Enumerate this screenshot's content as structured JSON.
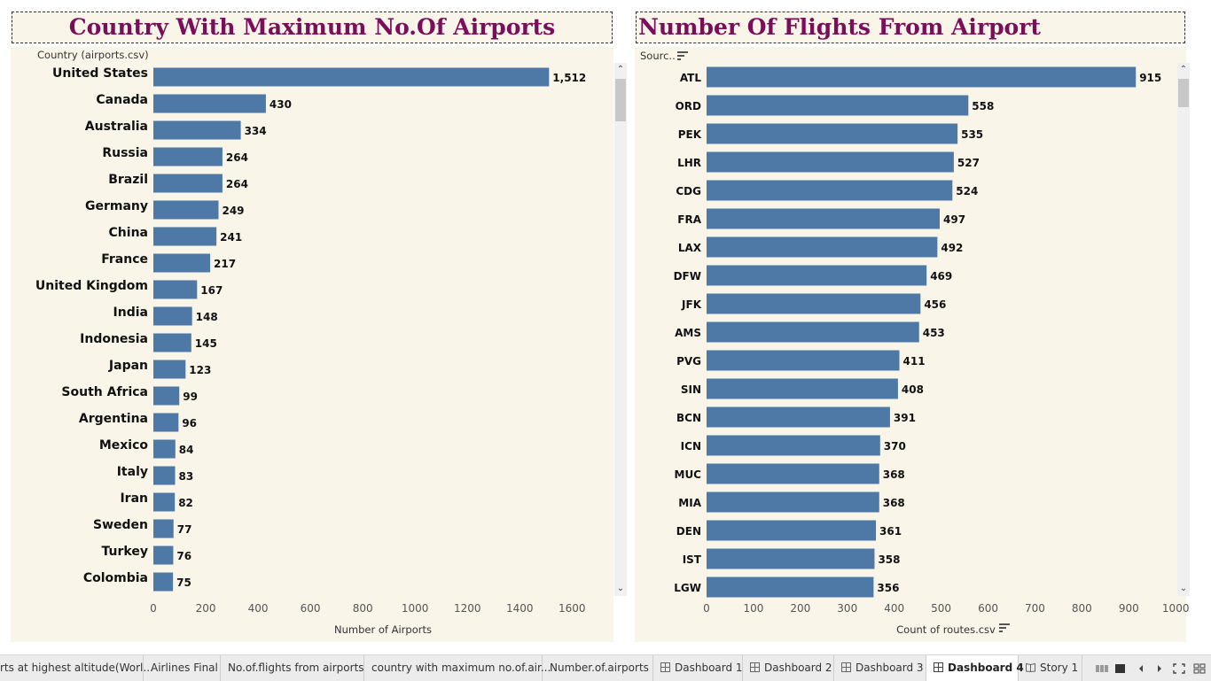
{
  "dashboard": {
    "left_title": "Country With Maximum No.Of Airports",
    "right_title": "Number Of Flights From Airport"
  },
  "colors": {
    "bar": "#4e79a7",
    "title": "#7b0e5a",
    "panel_bg": "#faf5e9"
  },
  "left_chart": {
    "row_header": "Country (airports.csv)"
  },
  "right_chart": {
    "row_header": "Sourc..",
    "sort_icon": "sort-descending-icon",
    "xlabel_sort_icon": "sort-descending-icon"
  },
  "chart_data": [
    {
      "type": "bar",
      "orientation": "horizontal",
      "title": "Country With Maximum No.Of Airports",
      "ylabel": "Country (airports.csv)",
      "xlabel": "Number of Airports",
      "categories": [
        "United States",
        "Canada",
        "Australia",
        "Russia",
        "Brazil",
        "Germany",
        "China",
        "France",
        "United Kingdom",
        "India",
        "Indonesia",
        "Japan",
        "South Africa",
        "Argentina",
        "Mexico",
        "Italy",
        "Iran",
        "Sweden",
        "Turkey",
        "Colombia"
      ],
      "values": [
        1512,
        430,
        334,
        264,
        264,
        249,
        241,
        217,
        167,
        148,
        145,
        123,
        99,
        96,
        84,
        83,
        82,
        77,
        76,
        75
      ],
      "value_labels": [
        "1,512",
        "430",
        "334",
        "264",
        "264",
        "249",
        "241",
        "217",
        "167",
        "148",
        "145",
        "123",
        "99",
        "96",
        "84",
        "83",
        "82",
        "77",
        "76",
        "75"
      ],
      "xticks": [
        "0",
        "200",
        "400",
        "600",
        "800",
        "1000",
        "1200",
        "1400",
        "1600"
      ],
      "xlim": [
        0,
        1700
      ],
      "grid": false
    },
    {
      "type": "bar",
      "orientation": "horizontal",
      "title": "Number Of Flights From Airport",
      "ylabel": "Sourc..",
      "xlabel": "Count of routes.csv",
      "categories": [
        "ATL",
        "ORD",
        "PEK",
        "LHR",
        "CDG",
        "FRA",
        "LAX",
        "DFW",
        "JFK",
        "AMS",
        "PVG",
        "SIN",
        "BCN",
        "ICN",
        "MUC",
        "MIA",
        "DEN",
        "IST",
        "LGW"
      ],
      "values": [
        915,
        558,
        535,
        527,
        524,
        497,
        492,
        469,
        456,
        453,
        411,
        408,
        391,
        370,
        368,
        368,
        361,
        358,
        356
      ],
      "value_labels": [
        "915",
        "558",
        "535",
        "527",
        "524",
        "497",
        "492",
        "469",
        "456",
        "453",
        "411",
        "408",
        "391",
        "370",
        "368",
        "368",
        "361",
        "358",
        "356"
      ],
      "xticks": [
        "0",
        "100",
        "200",
        "300",
        "400",
        "500",
        "600",
        "700",
        "800",
        "900",
        "1000"
      ],
      "xlim": [
        0,
        1000
      ],
      "grid": false
    }
  ],
  "tabs": [
    {
      "label": "rts at highest altitude(Worl...",
      "icon": ""
    },
    {
      "label": "Airlines Final",
      "icon": ""
    },
    {
      "label": "No.of.flights from airports",
      "icon": ""
    },
    {
      "label": "country with maximum no.of.air...",
      "icon": ""
    },
    {
      "label": "Number.of.airports",
      "icon": ""
    },
    {
      "label": "Dashboard 1",
      "icon": "dashboard-icon"
    },
    {
      "label": "Dashboard 2",
      "icon": "dashboard-icon"
    },
    {
      "label": "Dashboard 3",
      "icon": "dashboard-icon"
    },
    {
      "label": "Dashboard 4",
      "icon": "dashboard-icon",
      "active": true
    },
    {
      "label": "Story 1",
      "icon": "story-icon"
    }
  ],
  "toolbar_icons": [
    "show-filmstrip-icon",
    "show-tabs-icon",
    "previous-sheet-icon",
    "next-sheet-icon",
    "fullscreen-icon",
    "grid-view-icon"
  ]
}
